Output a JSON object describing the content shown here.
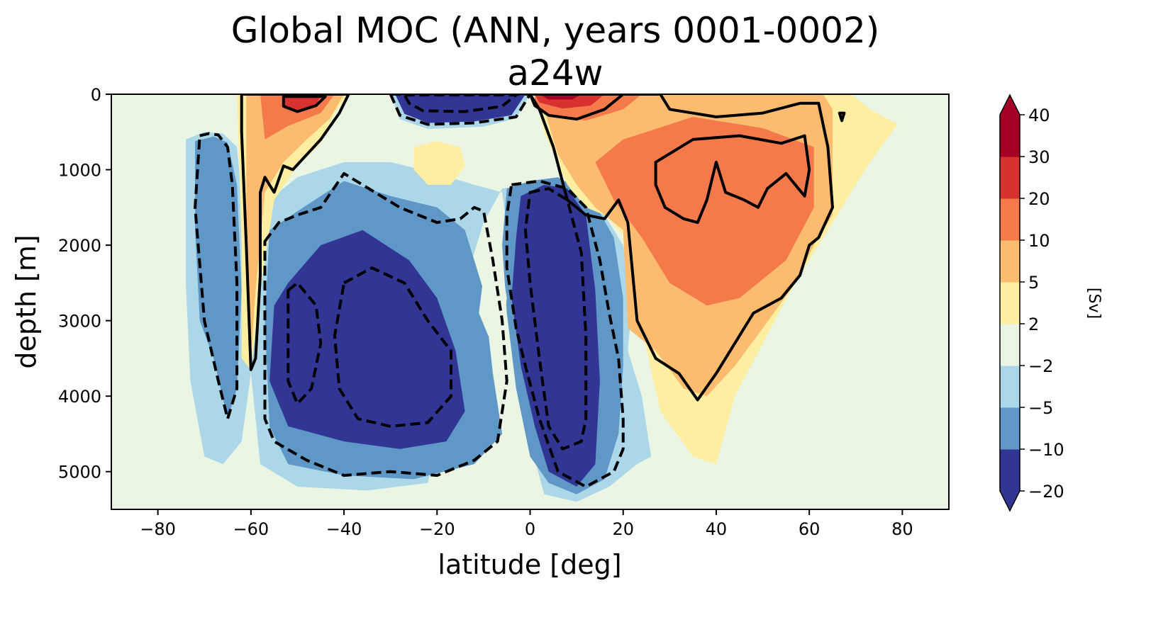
{
  "chart_data": {
    "type": "contour",
    "title": "Global MOC (ANN, years 0001-0002)",
    "subtitle": "a24w",
    "xlabel": "latitude [deg]",
    "ylabel": "depth [m]",
    "xlim": [
      -90,
      90
    ],
    "ylim": [
      5500,
      0
    ],
    "xticks": [
      -80,
      -60,
      -40,
      -20,
      0,
      20,
      40,
      60,
      80
    ],
    "xtick_labels": [
      "−80",
      "−60",
      "−40",
      "−20",
      "0",
      "20",
      "40",
      "60",
      "80"
    ],
    "yticks": [
      0,
      1000,
      2000,
      3000,
      4000,
      5000
    ],
    "ytick_labels": [
      "0",
      "1000",
      "2000",
      "3000",
      "4000",
      "5000"
    ],
    "colorbar": {
      "label": "[Sv]",
      "levels": [
        -20,
        -10,
        -5,
        -2,
        2,
        5,
        10,
        20,
        30,
        40
      ],
      "level_labels": [
        "−20",
        "−10",
        "−5",
        "−2",
        "2",
        "5",
        "10",
        "20",
        "30",
        "40"
      ],
      "colors": [
        "#313695",
        "#5f97c7",
        "#abd7e8",
        "#eaf5e3",
        "#feeea2",
        "#fbbc70",
        "#f47a4b",
        "#d8312f",
        "#a50026"
      ],
      "extend_low_color": "#313695",
      "extend_high_color": "#a50026"
    },
    "contour_lines": {
      "solid": "positive streamfunction (Sv)",
      "dashed": "negative streamfunction (Sv)"
    },
    "cells": [
      {
        "name": "southern-ocean-positive",
        "lat": [
          -62,
          -40
        ],
        "depth": [
          0,
          3700
        ],
        "value": 5,
        "core": {
          "lat": [
            -58,
            -42
          ],
          "depth": [
            0,
            700
          ],
          "value": 10
        },
        "peak": {
          "lat": [
            -52,
            -44
          ],
          "depth": [
            50,
            300
          ],
          "value": 20
        }
      },
      {
        "name": "antarctic-negative",
        "lat": [
          -73,
          -62
        ],
        "depth": [
          500,
          4800
        ],
        "value": -5
      },
      {
        "name": "deep-southern-negative",
        "lat": [
          -57,
          -15
        ],
        "depth": [
          1400,
          5200
        ],
        "value": -10,
        "core": {
          "lat": [
            -52,
            -17
          ],
          "depth": [
            2500,
            4400
          ],
          "value": -20
        }
      },
      {
        "name": "tropical-south-negative",
        "lat": [
          -30,
          0
        ],
        "depth": [
          0,
          400
        ],
        "value": -10
      },
      {
        "name": "tropical-positive",
        "lat": [
          0,
          20
        ],
        "depth": [
          0,
          350
        ],
        "value": 20
      },
      {
        "name": "equatorial-deep-negative",
        "lat": [
          -5,
          17
        ],
        "depth": [
          1200,
          5300
        ],
        "value": -10
      },
      {
        "name": "north-atlantic-positive",
        "lat": [
          7,
          65
        ],
        "depth": [
          0,
          4100
        ],
        "value": 5,
        "core": {
          "lat": [
            20,
            62
          ],
          "depth": [
            500,
            2800
          ],
          "value": 10
        }
      },
      {
        "name": "north-subtropical-weak-positive",
        "lat": [
          -25,
          -15
        ],
        "depth": [
          650,
          1200
        ],
        "value": 2
      },
      {
        "name": "deep-north-weak-positive",
        "lat": [
          25,
          50
        ],
        "depth": [
          3500,
          4900
        ],
        "value": 2
      }
    ]
  }
}
